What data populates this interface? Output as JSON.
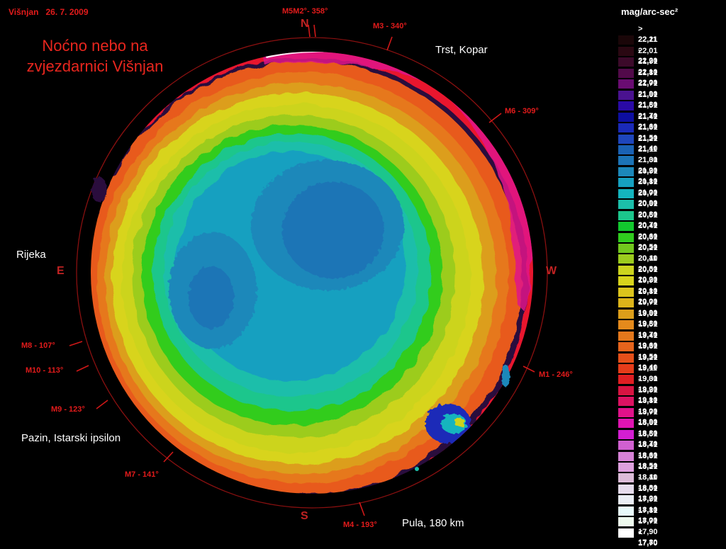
{
  "header": {
    "place_date": "Višnjan   26. 7. 2009",
    "title_line1": "Noćno nebo na",
    "title_line2": "zvjezdarnici Višnjan"
  },
  "directions": {
    "north": "N",
    "east": "E",
    "west": "W",
    "south": "S"
  },
  "markers": [
    {
      "label": "M5M2°- 358°"
    },
    {
      "label": "M3 - 340°"
    },
    {
      "label": "M6 - 309°"
    },
    {
      "label": "M1 - 246°"
    },
    {
      "label": "M4 - 193°"
    },
    {
      "label": "M7 - 141°"
    },
    {
      "label": "M9 - 123°"
    },
    {
      "label": "M10 - 113°"
    },
    {
      "label": "M8 - 107°"
    }
  ],
  "places": {
    "trst": "Trst, Kopar",
    "rijeka": "Rijeka",
    "pazin": "Pazin, Istarski ipsilon",
    "pula": "Pula, 180 km"
  },
  "legend": {
    "title": "mag/arc-sec²",
    "items": [
      {
        "label": "> 22,21",
        "color": "#000000"
      },
      {
        "label": "22,11 - 22,20",
        "color": "#1a0608"
      },
      {
        "label": "22,01 - 22,10",
        "color": "#2a0812"
      },
      {
        "label": "21,91 - 22,00",
        "color": "#3c0a2a"
      },
      {
        "label": "21,81 - 21,90",
        "color": "#520a4a"
      },
      {
        "label": "21,71 - 21,80",
        "color": "#6a0c72"
      },
      {
        "label": "21,61 - 21,70",
        "color": "#4a1290"
      },
      {
        "label": "21,51 - 21,60",
        "color": "#2a0aa6"
      },
      {
        "label": "21,41 - 21,50",
        "color": "#0d0ea0"
      },
      {
        "label": "21,31 - 21,40",
        "color": "#1a2ab8"
      },
      {
        "label": "21,21 - 21,30",
        "color": "#1e46bc"
      },
      {
        "label": "21,11 - 21,20",
        "color": "#1a62b4"
      },
      {
        "label": "21,01 - 21,10",
        "color": "#1c74b6"
      },
      {
        "label": "20,91 - 21,00",
        "color": "#1c88ba"
      },
      {
        "label": "20,81 - 20,90",
        "color": "#16a0c0"
      },
      {
        "label": "20,71 - 20,80",
        "color": "#14b4be"
      },
      {
        "label": "20,61 - 20,70",
        "color": "#1cbeaa"
      },
      {
        "label": "20,51 - 20,60",
        "color": "#1cc68c"
      },
      {
        "label": "20,41 - 20,50",
        "color": "#12c82e"
      },
      {
        "label": "20,31 - 20,40",
        "color": "#30cc1e"
      },
      {
        "label": "20,21 - 20,30",
        "color": "#72c81e"
      },
      {
        "label": "20,11 - 20,20",
        "color": "#9ccc1e"
      },
      {
        "label": "20,01 - 20,10",
        "color": "#ccd41e"
      },
      {
        "label": "19,91 - 20,00",
        "color": "#d8d41c"
      },
      {
        "label": "19,81 - 19,90",
        "color": "#dcc41c"
      },
      {
        "label": "19,71 - 19,80",
        "color": "#dcb41a"
      },
      {
        "label": "19,61 - 19,70",
        "color": "#dc9e1a"
      },
      {
        "label": "19,51 - 19,60",
        "color": "#e48a1c"
      },
      {
        "label": "19,41 - 19,50",
        "color": "#e4781c"
      },
      {
        "label": "19,31 - 19,40",
        "color": "#e6641c"
      },
      {
        "label": "19,21 - 19,30",
        "color": "#e6501a"
      },
      {
        "label": "19,11 - 19,20",
        "color": "#e63c1a"
      },
      {
        "label": "19,01 - 19,10",
        "color": "#e01e22"
      },
      {
        "label": "18,91 - 19,00",
        "color": "#d81442"
      },
      {
        "label": "18,81 - 18,90",
        "color": "#dc1262"
      },
      {
        "label": "18,71 - 18,80",
        "color": "#e0128a"
      },
      {
        "label": "18,61 - 18,70",
        "color": "#e014b2"
      },
      {
        "label": "18,51 - 18,60",
        "color": "#d41ed2"
      },
      {
        "label": "18,41 - 18,50",
        "color": "#d060d0"
      },
      {
        "label": "18,31 - 18,40",
        "color": "#d682d6"
      },
      {
        "label": "18,21 - 18,30",
        "color": "#dea0de"
      },
      {
        "label": "18,11 - 18,20",
        "color": "#dcbcd8"
      },
      {
        "label": "18,01 - 18,10",
        "color": "#e6dcec"
      },
      {
        "label": "17,91 - 18,00",
        "color": "#eaeef4"
      },
      {
        "label": "17,81 - 17,90",
        "color": "#e8fafa"
      },
      {
        "label": "17,71 - 17,80",
        "color": "#eefaee"
      },
      {
        "label": "< 17,70",
        "color": "#ffffff"
      }
    ]
  }
}
